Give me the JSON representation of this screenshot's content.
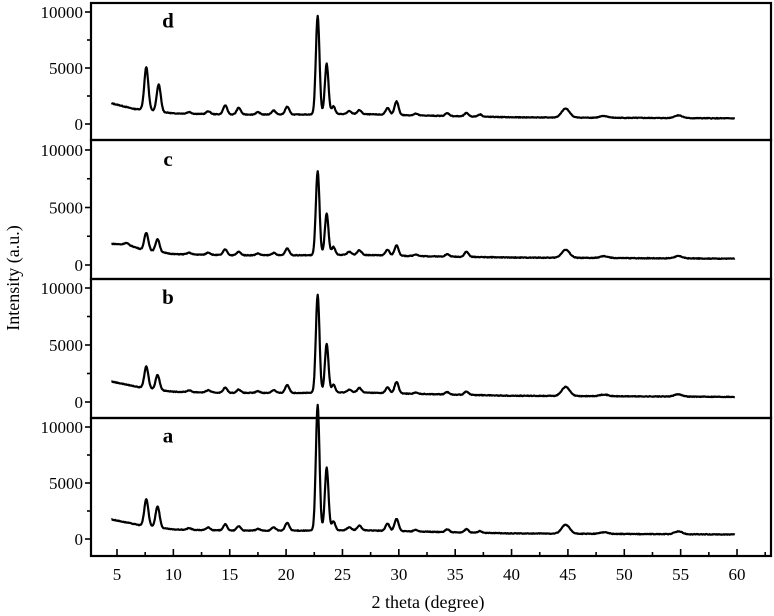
{
  "chart_data": {
    "type": "line",
    "title": "",
    "xlabel": "2 theta (degree)",
    "ylabel": "Intensity (a.u.)",
    "xlim": [
      2.7,
      63
    ],
    "x_ticks": [
      5,
      10,
      15,
      20,
      25,
      30,
      35,
      40,
      45,
      50,
      55,
      60
    ],
    "y_ticks": [
      0,
      5000,
      10000
    ],
    "ylim_each_panel": [
      -1500,
      11000
    ],
    "grid": false,
    "legend": "none",
    "layout": "4 vertically stacked panels sharing x-axis",
    "panels": [
      {
        "label": "d",
        "baseline": [
          [
            4.5,
            1850
          ],
          [
            6.5,
            1350
          ],
          [
            7.2,
            1300
          ],
          [
            10,
            950
          ],
          [
            15,
            850
          ],
          [
            22,
            850
          ],
          [
            26,
            900
          ],
          [
            30,
            800
          ],
          [
            40,
            600
          ],
          [
            50,
            550
          ],
          [
            60,
            500
          ]
        ],
        "peaks": [
          [
            7.6,
            3800
          ],
          [
            8.7,
            2400
          ],
          [
            11.4,
            150
          ],
          [
            13.1,
            250
          ],
          [
            14.6,
            800
          ],
          [
            15.8,
            600
          ],
          [
            17.5,
            200
          ],
          [
            18.9,
            350
          ],
          [
            20.1,
            700
          ],
          [
            22.8,
            8800
          ],
          [
            23.6,
            4500
          ],
          [
            24.2,
            700
          ],
          [
            25.6,
            250
          ],
          [
            26.5,
            350
          ],
          [
            29.0,
            600
          ],
          [
            29.8,
            1200
          ],
          [
            31.5,
            150
          ],
          [
            34.3,
            250
          ],
          [
            36.0,
            300
          ],
          [
            37.2,
            200
          ],
          [
            44.8,
            800
          ],
          [
            48.2,
            150
          ],
          [
            54.8,
            250
          ]
        ]
      },
      {
        "label": "c",
        "baseline": [
          [
            4.5,
            1850
          ],
          [
            6.0,
            1750
          ],
          [
            7.2,
            1350
          ],
          [
            10,
            950
          ],
          [
            15,
            850
          ],
          [
            22,
            850
          ],
          [
            26,
            900
          ],
          [
            30,
            800
          ],
          [
            40,
            650
          ],
          [
            50,
            600
          ],
          [
            60,
            550
          ]
        ],
        "peaks": [
          [
            5.8,
            150
          ],
          [
            7.6,
            1500
          ],
          [
            8.6,
            1100
          ],
          [
            11.4,
            150
          ],
          [
            13.1,
            200
          ],
          [
            14.6,
            500
          ],
          [
            15.8,
            300
          ],
          [
            17.5,
            150
          ],
          [
            18.9,
            200
          ],
          [
            20.1,
            600
          ],
          [
            22.8,
            7300
          ],
          [
            23.6,
            3600
          ],
          [
            24.2,
            700
          ],
          [
            25.6,
            250
          ],
          [
            26.5,
            400
          ],
          [
            29.0,
            500
          ],
          [
            29.8,
            900
          ],
          [
            31.5,
            150
          ],
          [
            34.3,
            200
          ],
          [
            36.0,
            450
          ],
          [
            44.8,
            700
          ],
          [
            48.2,
            150
          ],
          [
            54.8,
            200
          ]
        ]
      },
      {
        "label": "b",
        "baseline": [
          [
            4.5,
            1800
          ],
          [
            7.2,
            1250
          ],
          [
            10,
            900
          ],
          [
            15,
            800
          ],
          [
            22,
            800
          ],
          [
            26,
            850
          ],
          [
            30,
            750
          ],
          [
            40,
            550
          ],
          [
            50,
            500
          ],
          [
            60,
            450
          ]
        ],
        "peaks": [
          [
            7.6,
            1900
          ],
          [
            8.6,
            1300
          ],
          [
            11.4,
            150
          ],
          [
            13.1,
            200
          ],
          [
            14.6,
            450
          ],
          [
            15.8,
            300
          ],
          [
            17.5,
            150
          ],
          [
            18.9,
            250
          ],
          [
            20.1,
            700
          ],
          [
            22.8,
            8600
          ],
          [
            23.6,
            4300
          ],
          [
            24.2,
            700
          ],
          [
            25.6,
            250
          ],
          [
            26.5,
            400
          ],
          [
            29.0,
            500
          ],
          [
            29.8,
            1000
          ],
          [
            31.5,
            100
          ],
          [
            34.3,
            200
          ],
          [
            36.0,
            300
          ],
          [
            44.8,
            800
          ],
          [
            48.2,
            150
          ],
          [
            54.8,
            200
          ]
        ]
      },
      {
        "label": "a",
        "baseline": [
          [
            4.5,
            1750
          ],
          [
            7.2,
            1200
          ],
          [
            10,
            850
          ],
          [
            15,
            750
          ],
          [
            22,
            750
          ],
          [
            26,
            800
          ],
          [
            30,
            700
          ],
          [
            40,
            500
          ],
          [
            50,
            450
          ],
          [
            60,
            400
          ]
        ],
        "peaks": [
          [
            7.6,
            2400
          ],
          [
            8.6,
            1900
          ],
          [
            11.4,
            150
          ],
          [
            13.1,
            250
          ],
          [
            14.6,
            550
          ],
          [
            15.8,
            400
          ],
          [
            17.5,
            150
          ],
          [
            18.9,
            300
          ],
          [
            20.1,
            700
          ],
          [
            22.8,
            11200
          ],
          [
            23.6,
            5600
          ],
          [
            24.2,
            800
          ],
          [
            25.6,
            250
          ],
          [
            26.5,
            400
          ],
          [
            29.0,
            650
          ],
          [
            29.8,
            1100
          ],
          [
            31.5,
            150
          ],
          [
            34.3,
            250
          ],
          [
            36.0,
            300
          ],
          [
            37.2,
            150
          ],
          [
            44.8,
            800
          ],
          [
            48.2,
            150
          ],
          [
            54.8,
            250
          ]
        ]
      }
    ]
  }
}
